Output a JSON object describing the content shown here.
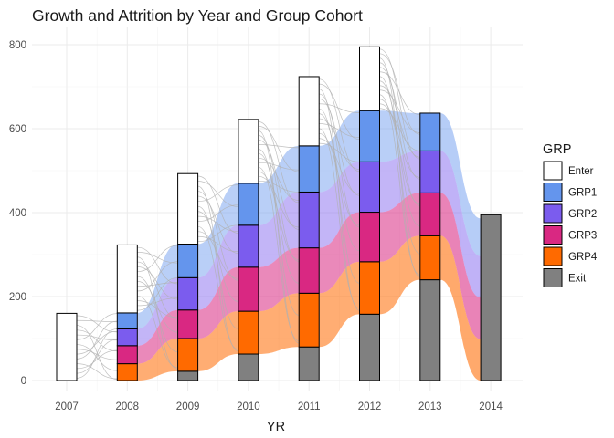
{
  "chart_data": {
    "type": "bar",
    "title": "Growth and Attrition by Year and Group Cohort",
    "xlabel": "YR",
    "ylabel": "",
    "categories": [
      "2007",
      "2008",
      "2009",
      "2010",
      "2011",
      "2012",
      "2013",
      "2014"
    ],
    "ylim": [
      0,
      840
    ],
    "yticks": [
      0,
      200,
      400,
      600,
      800
    ],
    "grid": true,
    "legend_position": "right",
    "legend_title": "GRP",
    "stack_order_bottom_to_top": [
      "Exit",
      "GRP4",
      "GRP3",
      "GRP2",
      "GRP1",
      "Enter"
    ],
    "series": [
      {
        "name": "Enter",
        "color": "#ffffff",
        "values": [
          160,
          162,
          168,
          152,
          165,
          152,
          0,
          0
        ]
      },
      {
        "name": "GRP1",
        "color": "#6495ed",
        "values": [
          0,
          38,
          80,
          100,
          110,
          122,
          90,
          0
        ]
      },
      {
        "name": "GRP2",
        "color": "#7b5cee",
        "values": [
          0,
          40,
          77,
          100,
          133,
          120,
          100,
          0
        ]
      },
      {
        "name": "GRP3",
        "color": "#d92882",
        "values": [
          0,
          43,
          68,
          105,
          108,
          118,
          102,
          0
        ]
      },
      {
        "name": "GRP4",
        "color": "#ff6a00",
        "values": [
          0,
          40,
          78,
          102,
          128,
          125,
          105,
          0
        ]
      },
      {
        "name": "Exit",
        "color": "#808080",
        "values": [
          0,
          0,
          22,
          63,
          80,
          158,
          240,
          395
        ]
      }
    ]
  }
}
